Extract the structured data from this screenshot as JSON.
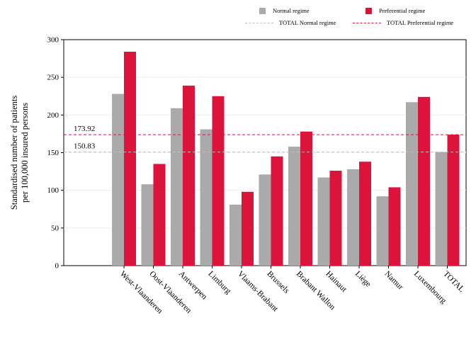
{
  "chart_data": {
    "type": "bar",
    "ylabel_lines": [
      "Standardised number of patients",
      "per 100,000 insured persons"
    ],
    "categories": [
      "West-Vlaanderen",
      "Oost-Vlaanderen",
      "Antwerpen",
      "Limburg",
      "Vlaams-Brabant",
      "Brussels",
      "Brabant Wallon",
      "Hainaut",
      "Liège",
      "Namur",
      "Luxembourg",
      "TOTAL"
    ],
    "series": [
      {
        "name": "Normal regime",
        "color": "#aaaaaa",
        "values": [
          228,
          108,
          209,
          181,
          81,
          121,
          158,
          117,
          128,
          92,
          217,
          150.83
        ]
      },
      {
        "name": "Preferential regime",
        "color": "#dc143c",
        "values": [
          284,
          135,
          239,
          225,
          98,
          145,
          178,
          126,
          138,
          104,
          224,
          173.92
        ]
      }
    ],
    "reference_lines": [
      {
        "name": "TOTAL Normal regime",
        "value": 150.83,
        "label": "150.83",
        "color": "#c0c0c0"
      },
      {
        "name": "TOTAL Preferential regime",
        "value": 173.92,
        "label": "173.92",
        "color": "#dc143c"
      }
    ],
    "ylim": [
      0,
      300
    ],
    "yticks": [
      "0",
      "50",
      "100",
      "150",
      "200",
      "250",
      "300"
    ],
    "grid": "horizontal",
    "legend_position": "top-right"
  }
}
